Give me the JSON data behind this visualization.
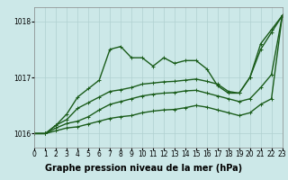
{
  "background_color": "#cce8e8",
  "grid_color": "#b0d0d0",
  "line_color": "#1a5c1a",
  "title": "Graphe pression niveau de la mer (hPa)",
  "xlim": [
    0,
    23
  ],
  "ylim": [
    1015.75,
    1018.25
  ],
  "yticks": [
    1016,
    1017,
    1018
  ],
  "xticks": [
    0,
    1,
    2,
    3,
    4,
    5,
    6,
    7,
    8,
    9,
    10,
    11,
    12,
    13,
    14,
    15,
    16,
    17,
    18,
    19,
    20,
    21,
    22,
    23
  ],
  "series": [
    [
      1016.0,
      1016.0,
      1016.15,
      1016.35,
      1016.65,
      1016.8,
      1016.95,
      1017.5,
      1017.55,
      1017.35,
      1017.35,
      1017.2,
      1017.35,
      1017.25,
      1017.3,
      1017.3,
      1017.15,
      1016.85,
      1016.72,
      1016.72,
      1017.0,
      1017.6,
      1017.85,
      1018.1
    ],
    [
      1016.0,
      1016.0,
      1016.15,
      1016.25,
      1016.45,
      1016.55,
      1016.65,
      1016.75,
      1016.78,
      1016.82,
      1016.88,
      1016.9,
      1016.92,
      1016.93,
      1016.95,
      1016.97,
      1016.93,
      1016.88,
      1016.75,
      1016.72,
      1017.0,
      1017.5,
      1017.8,
      1018.1
    ],
    [
      1016.0,
      1016.0,
      1016.1,
      1016.18,
      1016.22,
      1016.3,
      1016.42,
      1016.52,
      1016.57,
      1016.62,
      1016.67,
      1016.7,
      1016.72,
      1016.73,
      1016.76,
      1016.77,
      1016.72,
      1016.67,
      1016.62,
      1016.57,
      1016.62,
      1016.82,
      1017.05,
      1018.1
    ],
    [
      1016.0,
      1016.0,
      1016.05,
      1016.1,
      1016.12,
      1016.17,
      1016.22,
      1016.27,
      1016.3,
      1016.32,
      1016.37,
      1016.4,
      1016.42,
      1016.43,
      1016.46,
      1016.5,
      1016.47,
      1016.42,
      1016.37,
      1016.32,
      1016.37,
      1016.52,
      1016.62,
      1018.1
    ]
  ],
  "marker": "+",
  "marker_size": 3.5,
  "linewidth": 1.0,
  "title_fontsize": 7.0,
  "tick_fontsize": 5.5
}
